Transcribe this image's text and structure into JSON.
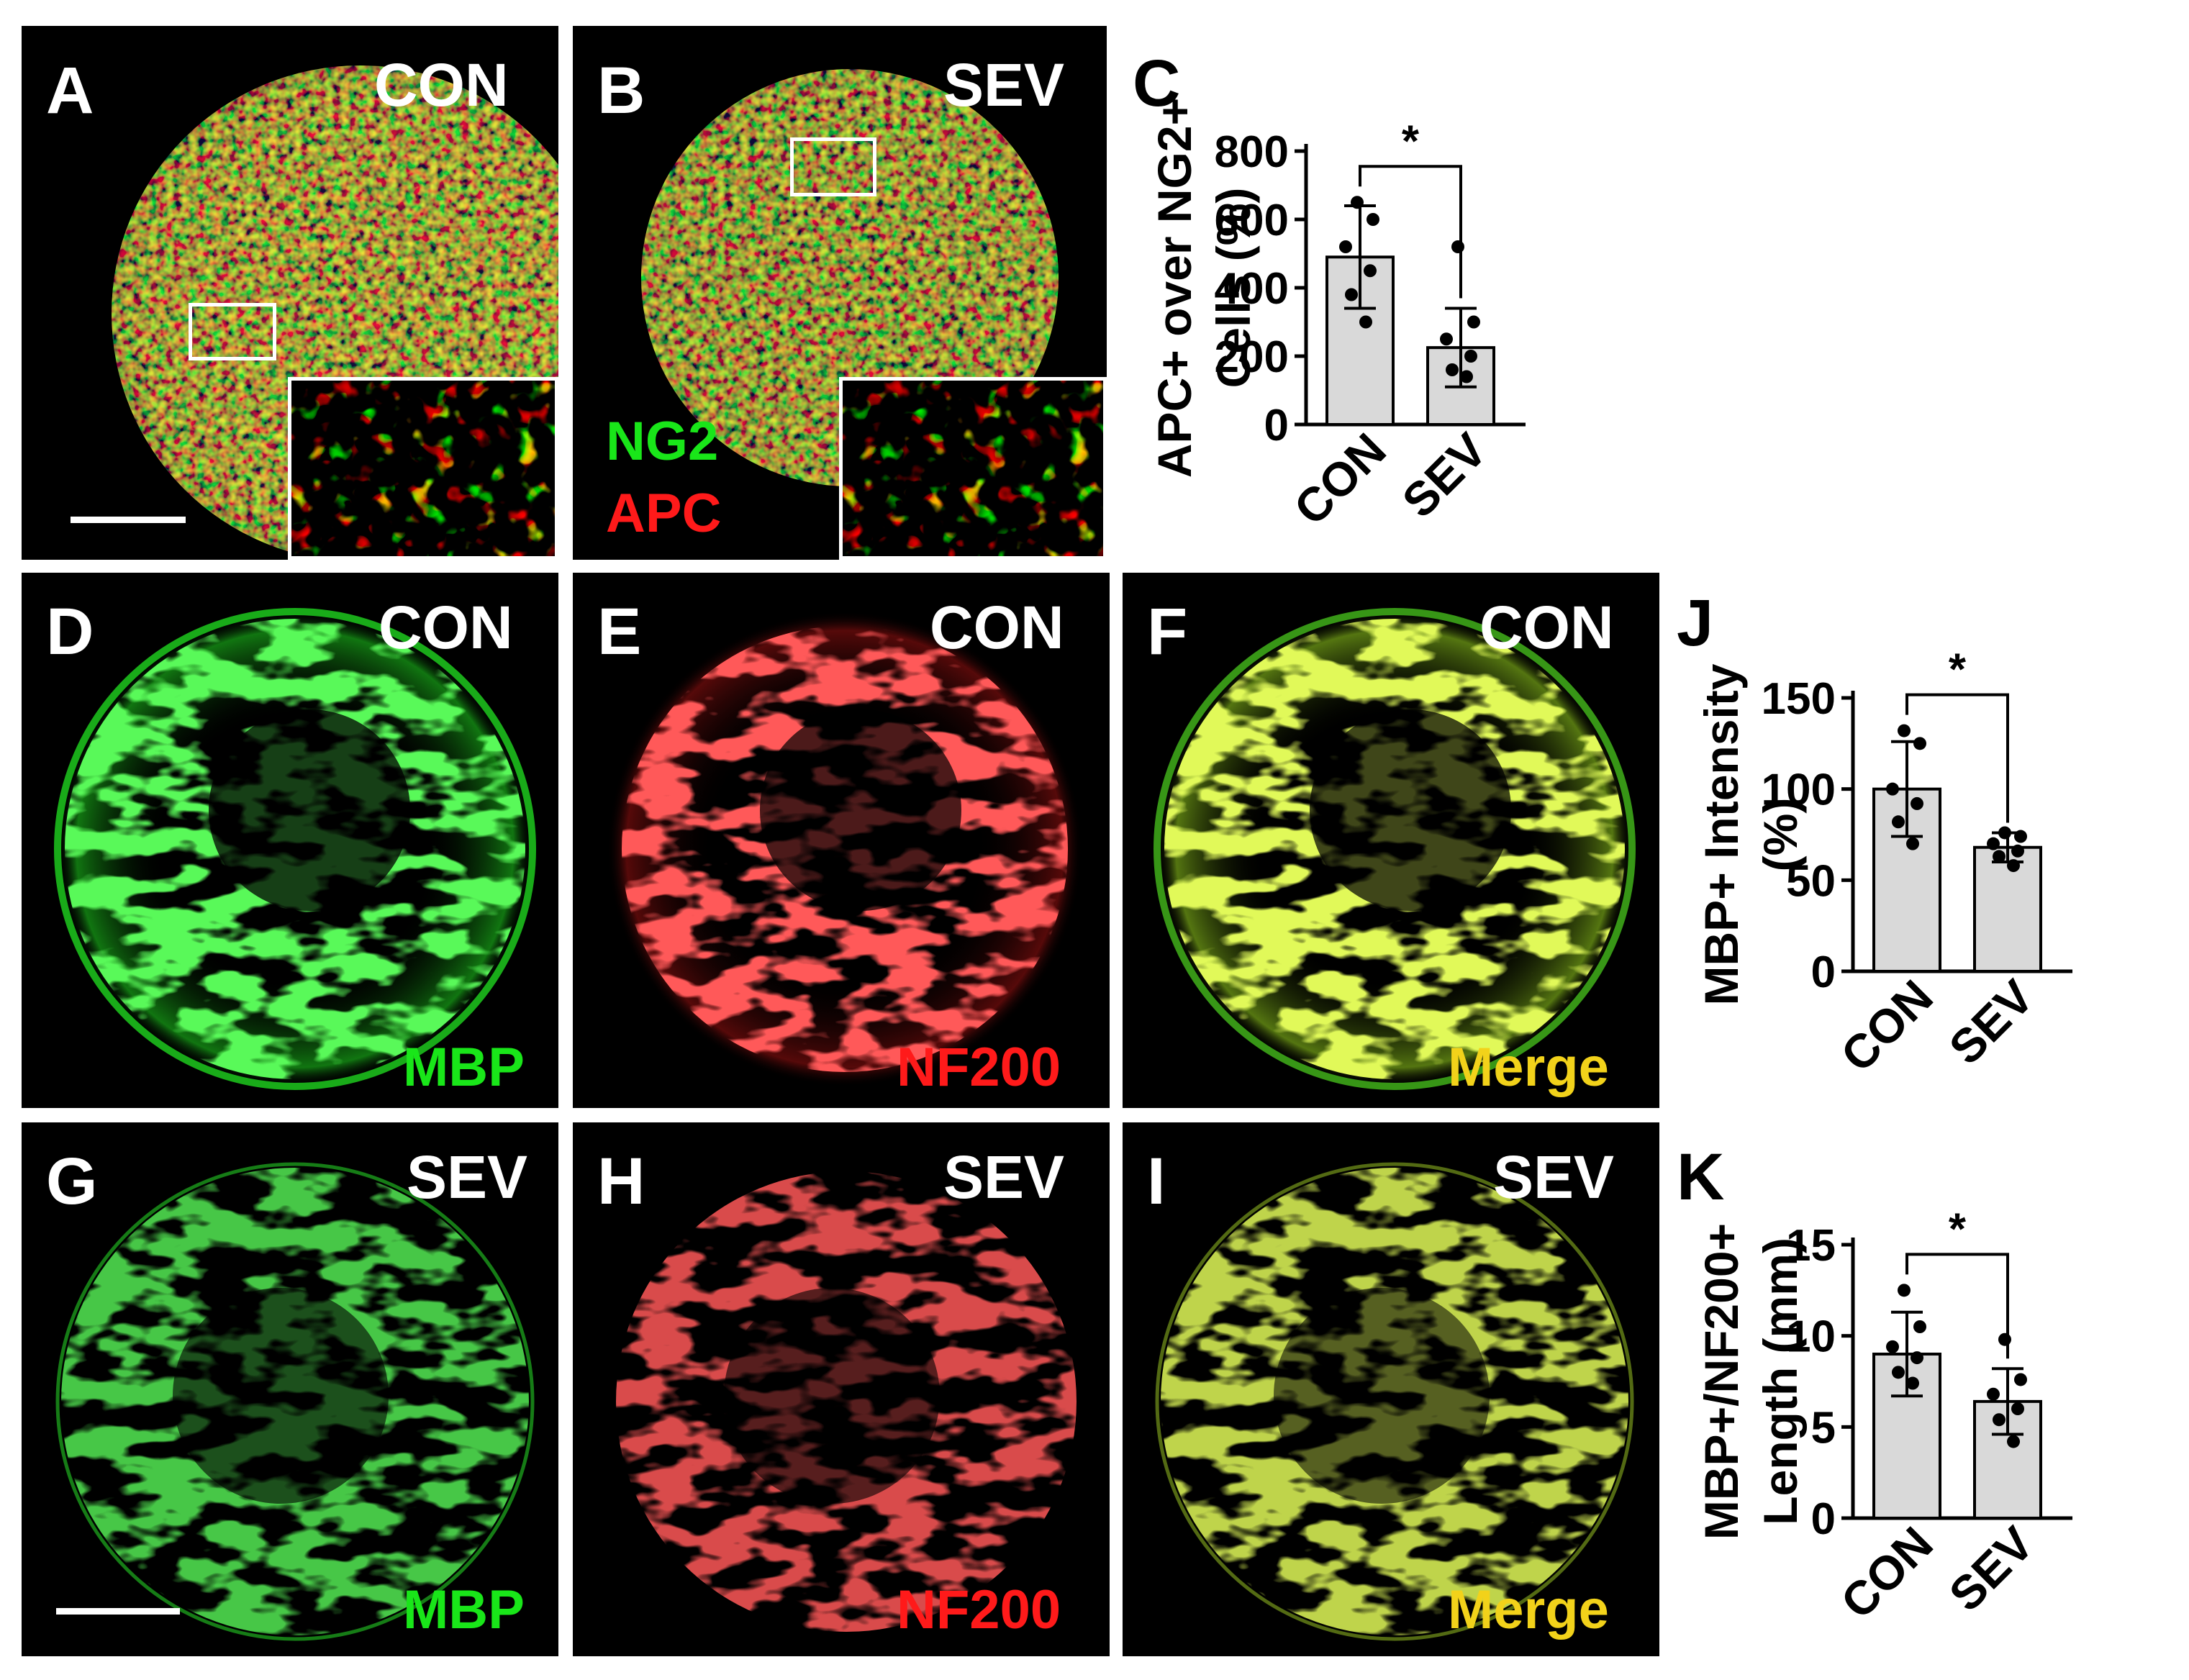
{
  "panels": {
    "A": {
      "label": "A",
      "condition": "CON"
    },
    "B": {
      "label": "B",
      "condition": "SEV",
      "stain1": "NG2",
      "stain2": "APC"
    },
    "D": {
      "label": "D",
      "condition": "CON",
      "stain": "MBP"
    },
    "E": {
      "label": "E",
      "condition": "CON",
      "stain": "NF200"
    },
    "F": {
      "label": "F",
      "condition": "CON",
      "stain": "Merge"
    },
    "G": {
      "label": "G",
      "condition": "SEV",
      "stain": "MBP"
    },
    "H": {
      "label": "H",
      "condition": "SEV",
      "stain": "NF200"
    },
    "I": {
      "label": "I",
      "condition": "SEV",
      "stain": "Merge"
    }
  },
  "colors": {
    "green": "#19e619",
    "red": "#ff1a1a",
    "yellow": "#f2d21a",
    "bar_fill": "#d9d9d9"
  },
  "chart_data": [
    {
      "panel": "C",
      "type": "bar",
      "ylabel_line1": "APC+ over NG2+",
      "ylabel_line2": "Cells (%)",
      "categories": [
        "CON",
        "SEV"
      ],
      "values": [
        490,
        225
      ],
      "errors": [
        150,
        115
      ],
      "points": [
        [
          650,
          600,
          520,
          450,
          380,
          300
        ],
        [
          520,
          300,
          250,
          200,
          160,
          140
        ]
      ],
      "yticks": [
        0,
        200,
        400,
        600,
        800
      ],
      "ylim": [
        0,
        800
      ],
      "significance": "*"
    },
    {
      "panel": "J",
      "type": "bar",
      "ylabel_line1": "MBP+ Intensity",
      "ylabel_line2": "(%)",
      "categories": [
        "CON",
        "SEV"
      ],
      "values": [
        100,
        68
      ],
      "errors": [
        26,
        8
      ],
      "points": [
        [
          132,
          125,
          100,
          92,
          82,
          70
        ],
        [
          76,
          74,
          70,
          66,
          63,
          58
        ]
      ],
      "yticks": [
        0,
        50,
        100,
        150
      ],
      "ylim": [
        0,
        150
      ],
      "significance": "*"
    },
    {
      "panel": "K",
      "type": "bar",
      "ylabel_line1": "MBP+/NF200+",
      "ylabel_line2": "Length (mm)",
      "categories": [
        "CON",
        "SEV"
      ],
      "values": [
        9.0,
        6.4
      ],
      "errors": [
        2.3,
        1.8
      ],
      "points": [
        [
          12.5,
          10.5,
          9.4,
          8.8,
          8.0,
          7.4
        ],
        [
          9.8,
          7.6,
          6.8,
          6.0,
          5.4,
          4.2
        ]
      ],
      "yticks": [
        0,
        5,
        10,
        15
      ],
      "ylim": [
        0,
        15
      ],
      "significance": "*"
    }
  ]
}
